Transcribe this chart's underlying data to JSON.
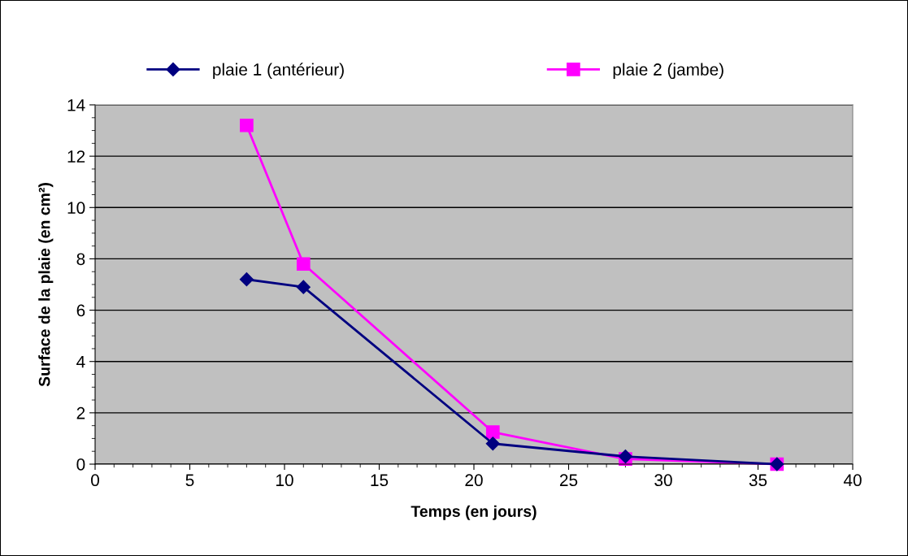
{
  "chart_data": {
    "type": "line",
    "xlabel": "Temps (en jours)",
    "ylabel": "Surface de la plaie (en cm²)",
    "x": [
      8,
      11,
      21,
      28,
      36
    ],
    "series": [
      {
        "name": "plaie 1 (antérieur)",
        "color": "#000080",
        "marker": "diamond",
        "values": [
          7.2,
          6.9,
          0.8,
          0.3,
          0
        ]
      },
      {
        "name": "plaie 2 (jambe)",
        "color": "#ff00ff",
        "marker": "square",
        "values": [
          13.2,
          7.8,
          1.25,
          0.2,
          0
        ]
      }
    ],
    "xlim": [
      0,
      40
    ],
    "xticks": [
      0,
      5,
      10,
      15,
      20,
      25,
      30,
      35,
      40
    ],
    "ylim": [
      0,
      14
    ],
    "yticks": [
      0,
      2,
      4,
      6,
      8,
      10,
      12,
      14
    ],
    "grid": "y",
    "legend": "top"
  }
}
